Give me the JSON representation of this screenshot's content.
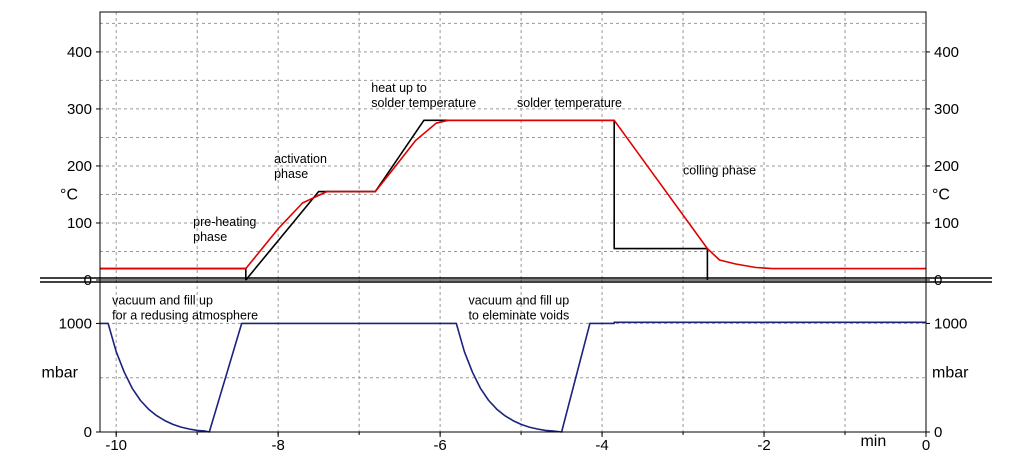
{
  "chart_data": [
    {
      "type": "line",
      "x_range": [
        -10.2,
        0
      ],
      "x_ticks": [
        -10,
        -8,
        -6,
        -4,
        -2,
        0
      ],
      "x_unit": "min",
      "ylim": [
        0,
        470
      ],
      "y_ticks": [
        0,
        100,
        200,
        300,
        400
      ],
      "ylabel": "°C",
      "grid": true,
      "series": [
        {
          "color": "#000000",
          "points": [
            [
              -10.2,
              20
            ],
            [
              -8.4,
              20
            ],
            [
              -8.4,
              0
            ],
            [
              -7.5,
              155
            ],
            [
              -6.8,
              155
            ],
            [
              -6.2,
              280
            ],
            [
              -3.85,
              280
            ],
            [
              -3.85,
              55
            ],
            [
              -2.7,
              55
            ],
            [
              -2.7,
              0
            ]
          ]
        },
        {
          "color": "#e00000",
          "points": [
            [
              -10.2,
              20
            ],
            [
              -8.4,
              20
            ],
            [
              -8.0,
              90
            ],
            [
              -7.7,
              135
            ],
            [
              -7.4,
              155
            ],
            [
              -6.8,
              155
            ],
            [
              -6.55,
              200
            ],
            [
              -6.3,
              245
            ],
            [
              -6.05,
              275
            ],
            [
              -5.9,
              280
            ],
            [
              -3.85,
              280
            ],
            [
              -2.7,
              55
            ],
            [
              -2.55,
              35
            ],
            [
              -2.35,
              28
            ],
            [
              -2.1,
              22
            ],
            [
              -1.9,
              20
            ],
            [
              0,
              20
            ]
          ]
        }
      ],
      "annotations": [
        {
          "lines": [
            "pre-heating",
            "phase"
          ],
          "x": -9.05,
          "y": 95
        },
        {
          "lines": [
            "activation",
            "phase"
          ],
          "x": -8.05,
          "y": 205
        },
        {
          "lines": [
            "heat up to",
            "solder temperature"
          ],
          "x": -6.85,
          "y": 330
        },
        {
          "lines": [
            "solder temperature"
          ],
          "x": -5.05,
          "y": 303
        },
        {
          "lines": [
            "colling phase"
          ],
          "x": -3.0,
          "y": 185
        }
      ]
    },
    {
      "type": "line",
      "x_range": [
        -10.2,
        0
      ],
      "x_ticks": [
        -10,
        -8,
        -6,
        -4,
        -2,
        0
      ],
      "x_unit": "min",
      "ylim": [
        0,
        1400
      ],
      "y_ticks": [
        0,
        1000
      ],
      "ylabel": "mbar",
      "grid": true,
      "series": [
        {
          "color": "#1a237e",
          "points": [
            [
              -10.2,
              1000
            ],
            [
              -10.1,
              1000
            ],
            [
              -10.0,
              740
            ],
            [
              -9.9,
              550
            ],
            [
              -9.8,
              400
            ],
            [
              -9.7,
              290
            ],
            [
              -9.6,
              210
            ],
            [
              -9.5,
              150
            ],
            [
              -9.4,
              105
            ],
            [
              -9.3,
              70
            ],
            [
              -9.2,
              45
            ],
            [
              -9.1,
              28
            ],
            [
              -9.0,
              15
            ],
            [
              -8.9,
              8
            ],
            [
              -8.85,
              0
            ],
            [
              -8.45,
              1000
            ],
            [
              -5.8,
              1000
            ],
            [
              -5.7,
              740
            ],
            [
              -5.6,
              550
            ],
            [
              -5.5,
              400
            ],
            [
              -5.4,
              290
            ],
            [
              -5.3,
              210
            ],
            [
              -5.2,
              150
            ],
            [
              -5.1,
              105
            ],
            [
              -5.0,
              70
            ],
            [
              -4.9,
              45
            ],
            [
              -4.8,
              28
            ],
            [
              -4.7,
              15
            ],
            [
              -4.6,
              8
            ],
            [
              -4.5,
              0
            ],
            [
              -4.15,
              1000
            ],
            [
              -3.85,
              1000
            ],
            [
              -3.85,
              1010
            ],
            [
              0,
              1010
            ]
          ]
        }
      ],
      "annotations": [
        {
          "lines": [
            "vacuum and fill up",
            "for a redusing atmosphere"
          ],
          "x": -10.05,
          "y": 1175
        },
        {
          "lines": [
            "vacuum and fill up",
            "to eleminate voids"
          ],
          "x": -5.65,
          "y": 1175
        }
      ]
    }
  ]
}
